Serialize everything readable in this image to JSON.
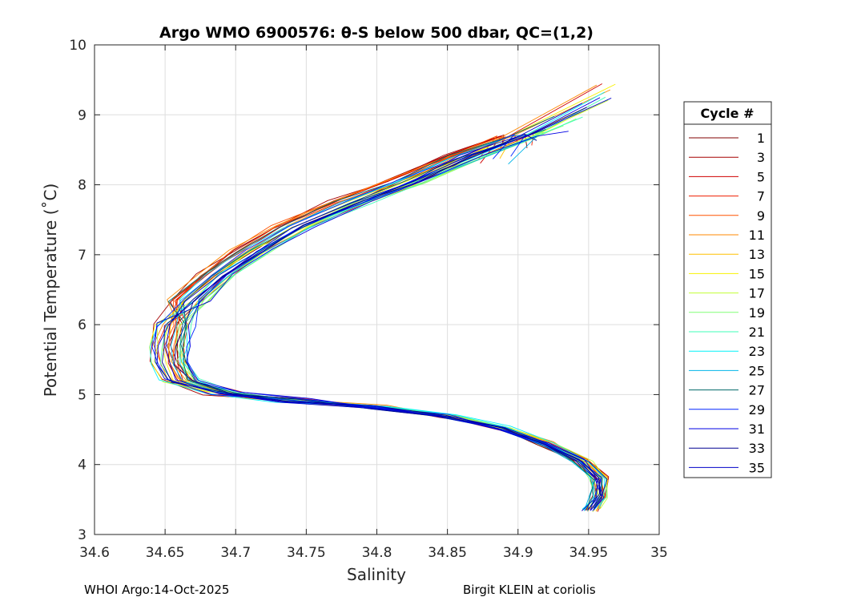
{
  "chart_data": {
    "type": "line",
    "title": "Argo WMO 6900576: θ-S below 500 dbar,  QC=(1,2)",
    "xlabel": "Salinity",
    "ylabel": "Potential Temperature (˚C)",
    "xlim": [
      34.6,
      35
    ],
    "ylim": [
      3,
      10
    ],
    "xticks": [
      34.6,
      34.65,
      34.7,
      34.75,
      34.8,
      34.85,
      34.9,
      34.95,
      35
    ],
    "xtick_labels": [
      "34.6",
      "34.65",
      "34.7",
      "34.75",
      "34.8",
      "34.85",
      "34.9",
      "34.95",
      "35"
    ],
    "yticks": [
      3,
      4,
      5,
      6,
      7,
      8,
      9,
      10
    ],
    "ytick_labels": [
      "3",
      "4",
      "5",
      "6",
      "7",
      "8",
      "9",
      "10"
    ],
    "grid": true,
    "legend": {
      "title": "Cycle #",
      "placement": "right-outside",
      "entries": [
        {
          "label": "1",
          "color": "#800000"
        },
        {
          "label": "3",
          "color": "#a50000"
        },
        {
          "label": "5",
          "color": "#cf0000"
        },
        {
          "label": "7",
          "color": "#ef1d00"
        },
        {
          "label": "9",
          "color": "#ff5200"
        },
        {
          "label": "11",
          "color": "#ff8800"
        },
        {
          "label": "13",
          "color": "#ffc000"
        },
        {
          "label": "15",
          "color": "#f8f200"
        },
        {
          "label": "17",
          "color": "#c2ff35"
        },
        {
          "label": "19",
          "color": "#80ff77"
        },
        {
          "label": "21",
          "color": "#3fffb8"
        },
        {
          "label": "23",
          "color": "#00f2f8"
        },
        {
          "label": "25",
          "color": "#00b4e8"
        },
        {
          "label": "27",
          "color": "#006868"
        },
        {
          "label": "29",
          "color": "#0025ff"
        },
        {
          "label": "31",
          "color": "#0000e4"
        },
        {
          "label": "33",
          "color": "#000090"
        },
        {
          "label": "35",
          "color": "#0000c8"
        }
      ]
    },
    "series_shape": {
      "description": "Each cycle is a theta-S profile with a 'C'-shaped curve",
      "points": [
        {
          "s": 34.935,
          "t": 9.0
        },
        {
          "s": 34.9,
          "t": 8.7
        },
        {
          "s": 34.86,
          "t": 8.4
        },
        {
          "s": 34.82,
          "t": 8.05
        },
        {
          "s": 34.78,
          "t": 7.75
        },
        {
          "s": 34.74,
          "t": 7.4
        },
        {
          "s": 34.71,
          "t": 7.05
        },
        {
          "s": 34.685,
          "t": 6.7
        },
        {
          "s": 34.665,
          "t": 6.35
        },
        {
          "s": 34.655,
          "t": 6.0
        },
        {
          "s": 34.652,
          "t": 5.7
        },
        {
          "s": 34.652,
          "t": 5.45
        },
        {
          "s": 34.66,
          "t": 5.2
        },
        {
          "s": 34.69,
          "t": 5.02
        },
        {
          "s": 34.74,
          "t": 4.92
        },
        {
          "s": 34.8,
          "t": 4.82
        },
        {
          "s": 34.85,
          "t": 4.7
        },
        {
          "s": 34.89,
          "t": 4.52
        },
        {
          "s": 34.92,
          "t": 4.3
        },
        {
          "s": 34.945,
          "t": 4.05
        },
        {
          "s": 34.958,
          "t": 3.8
        },
        {
          "s": 34.958,
          "t": 3.55
        },
        {
          "s": 34.952,
          "t": 3.35
        }
      ]
    }
  },
  "footer": {
    "left": "WHOI Argo:14-Oct-2025",
    "right": "Birgit KLEIN at coriolis"
  }
}
